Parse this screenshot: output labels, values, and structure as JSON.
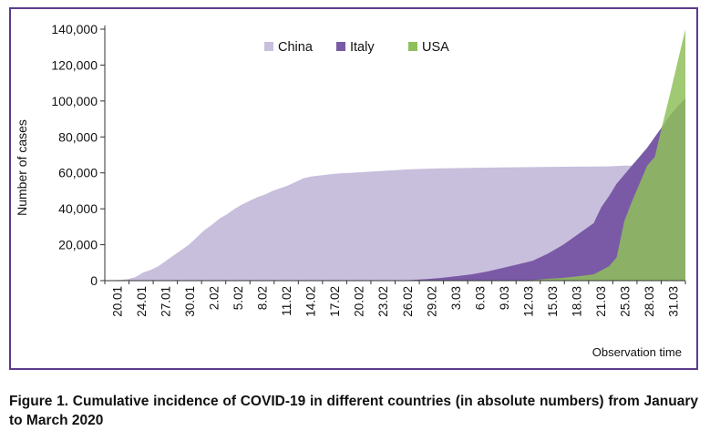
{
  "caption": "Figure 1. Cumulative incidence of COVID-19 in different countries (in absolute numbers) from January to March 2020",
  "chart_data": {
    "type": "area",
    "title": "",
    "xlabel": "Observation time",
    "ylabel": "Number of cases",
    "ylim": [
      0,
      140000
    ],
    "yticks": [
      0,
      20000,
      40000,
      60000,
      80000,
      100000,
      120000,
      140000
    ],
    "ytick_labels": [
      "0",
      "20,000",
      "40,000",
      "60,000",
      "80,000",
      "100,000",
      "120,000",
      "140,000"
    ],
    "x_tick_labels": [
      "20.01",
      "24.01",
      "27.01",
      "30.01",
      "2.02",
      "5.02",
      "8.02",
      "11.02",
      "14.02",
      "17.02",
      "20.02",
      "23.02",
      "26.02",
      "29.02",
      "3.03",
      "6.03",
      "9.03",
      "12.03",
      "15.03",
      "18.03",
      "21.03",
      "25.03",
      "28.03",
      "31.03"
    ],
    "grid": false,
    "legend": "top-center",
    "colors": {
      "China": "#c8bfdc",
      "Italy": "#7a5aa6",
      "USA": "#8fbf5a",
      "frame": "#5b3c8c"
    },
    "series": [
      {
        "name": "China",
        "points": [
          [
            0,
            0
          ],
          [
            2,
            400
          ],
          [
            3,
            800
          ],
          [
            4,
            2000
          ],
          [
            5,
            4500
          ],
          [
            6,
            6000
          ],
          [
            7,
            8000
          ],
          [
            8,
            11000
          ],
          [
            9,
            14000
          ],
          [
            10,
            17000
          ],
          [
            11,
            20000
          ],
          [
            12,
            24000
          ],
          [
            13,
            28000
          ],
          [
            14,
            31000
          ],
          [
            15,
            34500
          ],
          [
            16,
            37000
          ],
          [
            17,
            40000
          ],
          [
            18,
            42500
          ],
          [
            19,
            44500
          ],
          [
            20,
            46500
          ],
          [
            21,
            48000
          ],
          [
            22,
            50000
          ],
          [
            23,
            51500
          ],
          [
            24,
            53000
          ],
          [
            25,
            55000
          ],
          [
            26,
            57000
          ],
          [
            27,
            58000
          ],
          [
            28,
            58500
          ],
          [
            29,
            59000
          ],
          [
            30,
            59500
          ],
          [
            32,
            60000
          ],
          [
            34,
            60500
          ],
          [
            36,
            61000
          ],
          [
            38,
            61500
          ],
          [
            40,
            62000
          ],
          [
            44,
            62500
          ],
          [
            48,
            62800
          ],
          [
            52,
            63000
          ],
          [
            56,
            63200
          ],
          [
            60,
            63400
          ],
          [
            64,
            63500
          ],
          [
            66,
            63600
          ],
          [
            68,
            64000
          ],
          [
            69,
            64000
          ]
        ]
      },
      {
        "name": "Italy",
        "points": [
          [
            0,
            0
          ],
          [
            38,
            0
          ],
          [
            40,
            300
          ],
          [
            42,
            800
          ],
          [
            44,
            1500
          ],
          [
            46,
            2500
          ],
          [
            48,
            3500
          ],
          [
            50,
            5000
          ],
          [
            52,
            7000
          ],
          [
            54,
            9000
          ],
          [
            56,
            11000
          ],
          [
            58,
            15000
          ],
          [
            60,
            20000
          ],
          [
            62,
            26000
          ],
          [
            64,
            32000
          ],
          [
            65,
            41000
          ],
          [
            66,
            47000
          ],
          [
            67,
            54000
          ],
          [
            68,
            59000
          ],
          [
            69,
            64000
          ],
          [
            70,
            69000
          ],
          [
            71,
            74000
          ],
          [
            72,
            80000
          ],
          [
            73,
            86000
          ],
          [
            74,
            92000
          ],
          [
            75,
            97000
          ],
          [
            76,
            101500
          ]
        ]
      },
      {
        "name": "USA",
        "points": [
          [
            0,
            0
          ],
          [
            55,
            0
          ],
          [
            58,
            1000
          ],
          [
            60,
            1500
          ],
          [
            62,
            2500
          ],
          [
            64,
            3500
          ],
          [
            66,
            8000
          ],
          [
            67,
            13000
          ],
          [
            68,
            33000
          ],
          [
            69,
            44000
          ],
          [
            70,
            54000
          ],
          [
            71,
            64000
          ],
          [
            72,
            69000
          ],
          [
            73,
            87000
          ],
          [
            74,
            104000
          ],
          [
            75,
            122000
          ],
          [
            76,
            140000
          ]
        ]
      }
    ]
  }
}
